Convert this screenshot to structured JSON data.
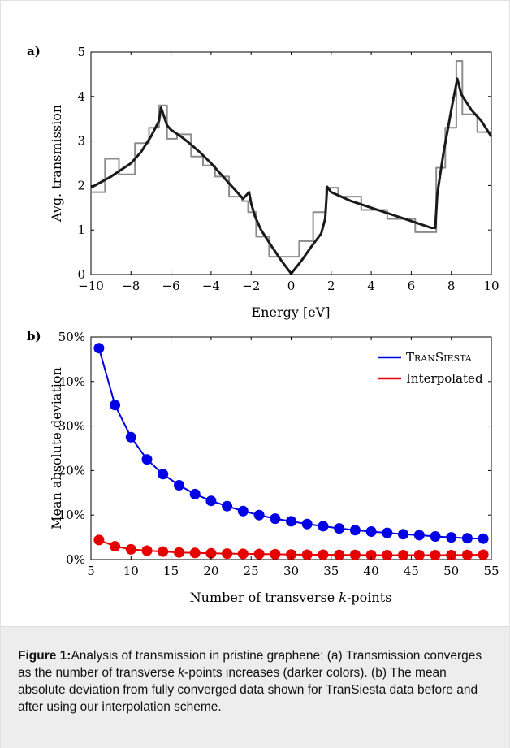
{
  "chart_data": [
    {
      "panel": "a)",
      "type": "line",
      "xlabel": "Energy [eV]",
      "ylabel": "Avg. transmission",
      "xlim": [
        -10,
        10
      ],
      "ylim": [
        0,
        5
      ],
      "xticks": [
        "−10",
        "−8",
        "−6",
        "−4",
        "−2",
        "0",
        "2",
        "4",
        "6",
        "8",
        "10"
      ],
      "yticks": [
        "0",
        "1",
        "2",
        "3",
        "4",
        "5"
      ],
      "grid": false,
      "series": [
        {
          "color": "#1a1a1a",
          "x": [
            -10,
            -9,
            -8,
            -7.5,
            -7,
            -6.6,
            -6.5,
            -6.2,
            -6,
            -5.5,
            -5,
            -4.5,
            -4,
            -3.5,
            -3,
            -2.5,
            -2.4,
            -2.1,
            -2,
            -1.8,
            -1.5,
            -1,
            -0.5,
            0,
            0.5,
            1,
            1.5,
            1.7,
            1.8,
            2,
            3,
            4,
            5,
            6,
            7,
            7.2,
            7.3,
            7.6,
            8,
            8.3,
            8.5,
            9,
            9.5,
            10
          ],
          "y": [
            1.95,
            2.2,
            2.5,
            2.75,
            3.1,
            3.45,
            3.75,
            3.35,
            3.25,
            3.1,
            2.92,
            2.72,
            2.5,
            2.25,
            2.0,
            1.75,
            1.7,
            1.85,
            1.6,
            1.3,
            1.0,
            0.65,
            0.32,
            0.02,
            0.3,
            0.62,
            0.92,
            1.25,
            1.97,
            1.85,
            1.65,
            1.5,
            1.35,
            1.2,
            1.05,
            1.05,
            1.8,
            2.7,
            3.7,
            4.4,
            4.05,
            3.7,
            3.45,
            3.1
          ]
        },
        {
          "color": "#8c8c8c",
          "x": [
            -10,
            -9.3,
            -9.3,
            -8.6,
            -8.6,
            -7.8,
            -7.8,
            -7.1,
            -7.1,
            -6.6,
            -6.6,
            -6.2,
            -6.2,
            -5.7,
            -5.7,
            -5.0,
            -5.0,
            -4.4,
            -4.4,
            -3.8,
            -3.8,
            -3.1,
            -3.1,
            -2.45,
            -2.45,
            -2.15,
            -2.15,
            -1.75,
            -1.75,
            -1.1,
            -1.1,
            -0.4,
            -0.4,
            0.4,
            0.4,
            1.1,
            1.1,
            1.75,
            1.75,
            2.35,
            2.35,
            3.5,
            3.5,
            4.8,
            4.8,
            6.2,
            6.2,
            7.25,
            7.25,
            7.7,
            7.7,
            8.25,
            8.25,
            8.55,
            8.55,
            9.3,
            9.3,
            10
          ],
          "y": [
            1.85,
            1.85,
            2.6,
            2.6,
            2.25,
            2.25,
            2.95,
            2.95,
            3.3,
            3.3,
            3.8,
            3.8,
            3.05,
            3.05,
            3.15,
            3.15,
            2.65,
            2.65,
            2.45,
            2.45,
            2.2,
            2.2,
            1.75,
            1.75,
            1.65,
            1.65,
            1.4,
            1.4,
            0.85,
            0.85,
            0.4,
            0.4,
            0.4,
            0.4,
            0.75,
            0.75,
            1.4,
            1.4,
            1.95,
            1.95,
            1.75,
            1.75,
            1.45,
            1.45,
            1.25,
            1.25,
            0.95,
            0.95,
            2.4,
            2.4,
            3.3,
            3.3,
            4.8,
            4.8,
            3.6,
            3.6,
            3.2,
            3.2
          ]
        }
      ]
    },
    {
      "panel": "b)",
      "type": "line",
      "xlabel": "Number of transverse k-points",
      "ylabel": "Mean absolute deviation",
      "xlim": [
        5,
        55
      ],
      "ylim": [
        0,
        50
      ],
      "xticks": [
        "5",
        "10",
        "15",
        "20",
        "25",
        "30",
        "35",
        "40",
        "45",
        "50",
        "55"
      ],
      "yticks": [
        "0%",
        "10%",
        "20%",
        "30%",
        "40%",
        "50%"
      ],
      "legend_position": "top-right",
      "grid": false,
      "categories": [
        6,
        8,
        10,
        12,
        14,
        16,
        18,
        20,
        22,
        24,
        26,
        28,
        30,
        32,
        34,
        36,
        38,
        40,
        42,
        44,
        46,
        48,
        50,
        52,
        54
      ],
      "series": [
        {
          "name": "TranSiesta",
          "color": "#0000e6",
          "values": [
            47.5,
            34.7,
            27.5,
            22.5,
            19.2,
            16.7,
            14.7,
            13.2,
            12.0,
            10.9,
            10.0,
            9.2,
            8.6,
            8.0,
            7.5,
            7.0,
            6.6,
            6.3,
            6.0,
            5.7,
            5.5,
            5.2,
            5.0,
            4.8,
            4.7
          ]
        },
        {
          "name": "Interpolated",
          "color": "#e60000",
          "values": [
            4.4,
            3.0,
            2.3,
            2.0,
            1.8,
            1.6,
            1.5,
            1.4,
            1.35,
            1.3,
            1.25,
            1.2,
            1.15,
            1.1,
            1.1,
            1.05,
            1.05,
            1.0,
            1.0,
            1.0,
            1.0,
            1.0,
            1.0,
            1.05,
            1.1
          ]
        }
      ]
    }
  ],
  "caption": {
    "label": "Figure 1:",
    "text": " Analysis of transmission in pristine graphene: (a) Transmission converges as the number of transverse k-points increases (darker colors). (b) The mean absolute deviation from fully converged data shown for TranSiesta data before and after using our interpolation scheme."
  }
}
